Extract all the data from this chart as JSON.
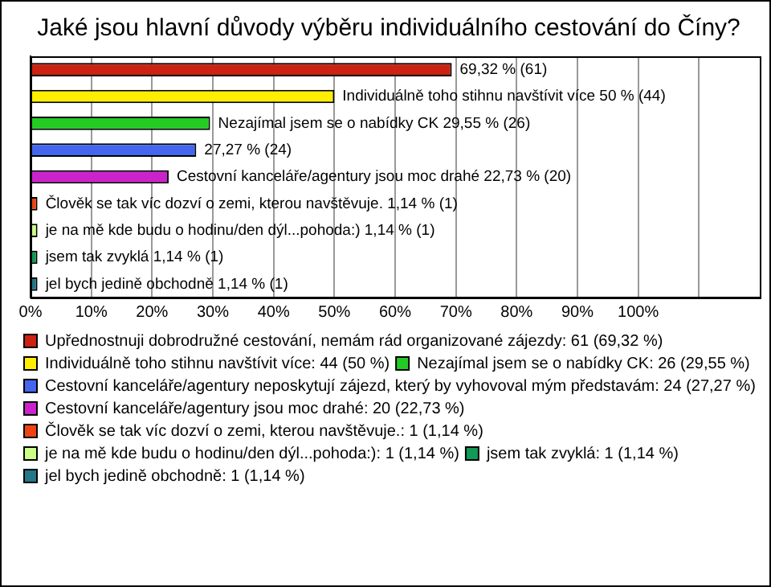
{
  "chart_data": {
    "type": "bar",
    "orientation": "horizontal",
    "title": "Jaké jsou hlavní důvody výběru individuálního cestování do Číny?",
    "categories": [
      null,
      null,
      null,
      null,
      null,
      null,
      null,
      null,
      null
    ],
    "series": [
      {
        "name": "Upřednostnuji dobrodružné cestování, nemám rád organizované zájezdy: 61 (69,32 %)",
        "color": "#cc2211",
        "values": [
          69.32,
          null,
          null,
          null,
          null,
          null,
          null,
          null,
          null
        ],
        "value_labels": [
          "69,32 % (61)",
          null,
          null,
          null,
          null,
          null,
          null,
          null,
          null
        ]
      },
      {
        "name": "Individuálně toho stihnu navštívit více: 44 (50 %)",
        "color": "#ffee00",
        "values": [
          null,
          50,
          null,
          null,
          null,
          null,
          null,
          null,
          null
        ],
        "value_labels": [
          null,
          "Individuálně toho stihnu navštívit více 50 % (44)",
          null,
          null,
          null,
          null,
          null,
          null,
          null
        ]
      },
      {
        "name": "Nezajímal jsem se o nabídky CK: 26 (29,55 %)",
        "color": "#22cc22",
        "values": [
          null,
          null,
          29.55,
          null,
          null,
          null,
          null,
          null,
          null
        ],
        "value_labels": [
          null,
          null,
          "Nezajímal jsem se o nabídky CK 29,55 % (26)",
          null,
          null,
          null,
          null,
          null,
          null
        ]
      },
      {
        "name": "Cestovní kanceláře/agentury neposkytují zájezd, který by vyhovoval mým představám: 24 (27,27 %)",
        "color": "#4466ee",
        "values": [
          null,
          null,
          null,
          27.27,
          null,
          null,
          null,
          null,
          null
        ],
        "value_labels": [
          null,
          null,
          null,
          "27,27 % (24)",
          null,
          null,
          null,
          null,
          null
        ]
      },
      {
        "name": "Cestovní kanceláře/agentury jsou moc drahé: 20 (22,73 %)",
        "color": "#cc22cc",
        "values": [
          null,
          null,
          null,
          null,
          22.73,
          null,
          null,
          null,
          null
        ],
        "value_labels": [
          null,
          null,
          null,
          null,
          "Cestovní kanceláře/agentury jsou moc drahé 22,73 % (20)",
          null,
          null,
          null,
          null
        ]
      },
      {
        "name": "Člověk se tak víc dozví o zemi, kterou navštěvuje.: 1 (1,14 %)",
        "color": "#ee4411",
        "values": [
          null,
          null,
          null,
          null,
          null,
          1.14,
          null,
          null,
          null
        ],
        "value_labels": [
          null,
          null,
          null,
          null,
          null,
          "Člověk se tak víc dozví o zemi, kterou navštěvuje. 1,14 % (1)",
          null,
          null,
          null
        ]
      },
      {
        "name": "je na mě kde budu o hodinu/den dýl...pohoda:): 1 (1,14 %)",
        "color": "#ccff88",
        "values": [
          null,
          null,
          null,
          null,
          null,
          null,
          1.14,
          null,
          null
        ],
        "value_labels": [
          null,
          null,
          null,
          null,
          null,
          null,
          "je na mě kde budu o hodinu/den dýl...pohoda:) 1,14 % (1)",
          null,
          null
        ]
      },
      {
        "name": "jsem tak zvyklá: 1 (1,14 %)",
        "color": "#119955",
        "values": [
          null,
          null,
          null,
          null,
          null,
          null,
          null,
          1.14,
          null
        ],
        "value_labels": [
          null,
          null,
          null,
          null,
          null,
          null,
          null,
          "jsem tak zvyklá 1,14 % (1)",
          null
        ]
      },
      {
        "name": "jel bych jedině obchodně: 1 (1,14 %)",
        "color": "#227788",
        "values": [
          null,
          null,
          null,
          null,
          null,
          null,
          null,
          null,
          1.14
        ],
        "value_labels": [
          null,
          null,
          null,
          null,
          null,
          null,
          null,
          null,
          "jel bych jedině obchodně 1,14 % (1)"
        ]
      }
    ],
    "xlim": [
      0,
      120
    ],
    "xticks": [
      {
        "value": 0,
        "label": "0%"
      },
      {
        "value": 10,
        "label": "10%"
      },
      {
        "value": 20,
        "label": "20%"
      },
      {
        "value": 30,
        "label": "30%"
      },
      {
        "value": 40,
        "label": "40%"
      },
      {
        "value": 50,
        "label": "50%"
      },
      {
        "value": 60,
        "label": "60%"
      },
      {
        "value": 70,
        "label": "70%"
      },
      {
        "value": 80,
        "label": "80%"
      },
      {
        "value": 90,
        "label": "90%"
      },
      {
        "value": 100,
        "label": "100%"
      },
      {
        "value": 110,
        "label": null
      }
    ],
    "grid": "x",
    "legend": "bottom",
    "tick_labels": "x"
  }
}
